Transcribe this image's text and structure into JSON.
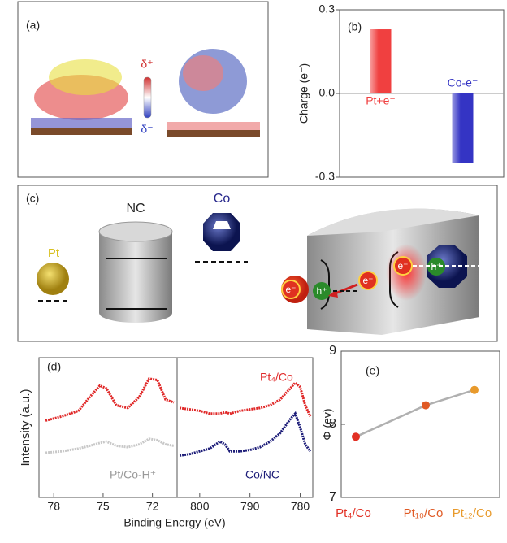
{
  "panel_a": {
    "label": "(a)",
    "delta_plus": "δ⁺",
    "delta_minus": "δ⁻"
  },
  "panel_c": {
    "label": "(c)",
    "nc": "NC",
    "co": "Co",
    "pt": "Pt",
    "electron": "e⁻",
    "hole": "h⁺"
  },
  "chart_data": [
    {
      "type": "bar",
      "label": "(b)",
      "ylabel": "Charge (e⁻)",
      "categories": [
        "Pt+e⁻",
        "Co-e⁻"
      ],
      "values": [
        0.23,
        -0.25
      ],
      "colors": [
        "#f04040",
        "#3434c4"
      ],
      "ylim": [
        -0.3,
        0.3
      ],
      "yticks": [
        -0.3,
        {
          "value": 0,
          "label": "0.0"
        },
        0.3
      ]
    },
    {
      "type": "spectra",
      "label": "(d)",
      "xlabel": "Binding Energy (eV)",
      "ylabel": "Intensity (a.u.)",
      "ylim": [
        0,
        1
      ],
      "segments": [
        {
          "xlim": [
            78.9,
            70.5
          ],
          "xticks": [
            78,
            75,
            72
          ],
          "x": [
            78.5,
            77.5,
            76.5,
            75.8,
            75.2,
            74.8,
            74.2,
            73.5,
            72.8,
            72.2,
            71.7,
            71.2,
            70.7
          ]
        },
        {
          "xlim": [
            804.5,
            777.5
          ],
          "xticks": [
            800,
            790,
            780
          ],
          "x": [
            804,
            802,
            800,
            798,
            796,
            795,
            794,
            792,
            790,
            788,
            786,
            784,
            782,
            781,
            780,
            779,
            778
          ]
        }
      ],
      "series": [
        {
          "name": "Pt₄/Co",
          "color": "#e02828",
          "segment": 0,
          "values": [
            0.55,
            0.58,
            0.62,
            0.72,
            0.8,
            0.78,
            0.66,
            0.64,
            0.72,
            0.85,
            0.84,
            0.7,
            0.68
          ]
        },
        {
          "name": "Pt/Co-H⁺",
          "color": "#c8c8c8",
          "segment": 0,
          "values": [
            0.32,
            0.33,
            0.35,
            0.37,
            0.39,
            0.4,
            0.37,
            0.36,
            0.38,
            0.42,
            0.41,
            0.38,
            0.37
          ]
        },
        {
          "color": "#e02828",
          "segment": 1,
          "values": [
            0.64,
            0.63,
            0.62,
            0.6,
            0.6,
            0.61,
            0.6,
            0.62,
            0.63,
            0.64,
            0.66,
            0.7,
            0.78,
            0.82,
            0.79,
            0.66,
            0.58
          ]
        },
        {
          "name": "Co/NC",
          "color": "#1c1c78",
          "segment": 1,
          "values": [
            0.3,
            0.31,
            0.33,
            0.35,
            0.4,
            0.38,
            0.33,
            0.33,
            0.34,
            0.36,
            0.4,
            0.46,
            0.56,
            0.6,
            0.5,
            0.38,
            0.33
          ]
        }
      ]
    },
    {
      "type": "line",
      "label": "(e)",
      "ylabel": "Φ (ev)",
      "categories": [
        "Pt₄/Co",
        "Pt₁₀/Co",
        "Pt₁₂/Co"
      ],
      "values": [
        7.83,
        8.26,
        8.47
      ],
      "colors": [
        "#e23024",
        "#e05a24",
        "#e89a2c"
      ],
      "line_color": "#b0b0b0",
      "ylim": [
        7,
        9
      ],
      "yticks": [
        7,
        8,
        9
      ]
    }
  ]
}
